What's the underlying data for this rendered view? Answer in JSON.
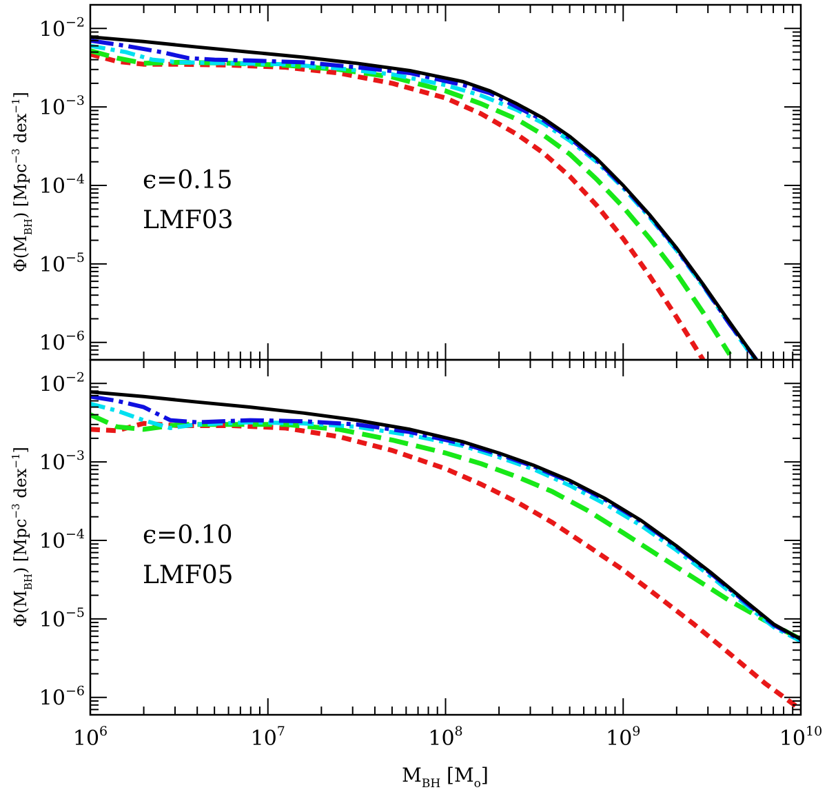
{
  "chart_data": [
    {
      "type": "line",
      "panel": "top",
      "annotation": {
        "line1": "ϵ=0.15",
        "line2": "LMF03"
      },
      "ylabel": {
        "base": "Φ(M",
        "sub": "BH",
        "mid": ")  [Mpc",
        "sup": "−3",
        "end": " dex",
        "sup2": "−1",
        "close": "]"
      },
      "xscale": "log",
      "yscale": "log",
      "xlim": [
        1000000,
        10000000000
      ],
      "ylim": [
        6e-07,
        0.02
      ],
      "yticks": [
        {
          "value": 0.01,
          "base": "10",
          "exp": "−2"
        },
        {
          "value": 0.001,
          "base": "10",
          "exp": "−3"
        },
        {
          "value": 0.0001,
          "base": "10",
          "exp": "−4"
        },
        {
          "value": 1e-05,
          "base": "10",
          "exp": "−5"
        },
        {
          "value": 1e-06,
          "base": "10",
          "exp": "−6"
        }
      ],
      "series": [
        {
          "name": "black solid",
          "color": "#000000",
          "dash": "",
          "width": 5,
          "points": [
            [
              6.0,
              0.0078
            ],
            [
              6.3,
              0.0068
            ],
            [
              6.6,
              0.0058
            ],
            [
              6.9,
              0.005
            ],
            [
              7.2,
              0.0043
            ],
            [
              7.5,
              0.0036
            ],
            [
              7.8,
              0.0029
            ],
            [
              8.1,
              0.0021
            ],
            [
              8.25,
              0.0016
            ],
            [
              8.4,
              0.0011
            ],
            [
              8.55,
              0.00072
            ],
            [
              8.7,
              0.00042
            ],
            [
              8.85,
              0.00022
            ],
            [
              9.0,
              0.0001
            ],
            [
              9.15,
              4.2e-05
            ],
            [
              9.3,
              1.6e-05
            ],
            [
              9.45,
              5.5e-06
            ],
            [
              9.6,
              1.8e-06
            ],
            [
              9.75,
              6e-07
            ]
          ]
        },
        {
          "name": "blue long-dash-dot",
          "color": "#1010e0",
          "dash": "34 8 6 8",
          "width": 6,
          "points": [
            [
              6.0,
              0.007
            ],
            [
              6.2,
              0.006
            ],
            [
              6.4,
              0.005
            ],
            [
              6.55,
              0.0042
            ],
            [
              6.7,
              0.004
            ],
            [
              6.9,
              0.0039
            ],
            [
              7.2,
              0.0037
            ],
            [
              7.5,
              0.0032
            ],
            [
              7.8,
              0.0027
            ],
            [
              8.1,
              0.0019
            ],
            [
              8.25,
              0.0015
            ],
            [
              8.4,
              0.001
            ],
            [
              8.55,
              0.00068
            ],
            [
              8.7,
              0.0004
            ],
            [
              8.85,
              0.00021
            ],
            [
              9.0,
              9.75e-05
            ],
            [
              9.15,
              4.1e-05
            ],
            [
              9.3,
              1.56e-05
            ],
            [
              9.45,
              5.4e-06
            ],
            [
              9.6,
              1.7e-06
            ],
            [
              9.75,
              6e-07
            ]
          ]
        },
        {
          "name": "cyan dash-dot",
          "color": "#00e0f0",
          "dash": "22 8 6 8",
          "width": 6,
          "points": [
            [
              6.0,
              0.006
            ],
            [
              6.2,
              0.005
            ],
            [
              6.35,
              0.004
            ],
            [
              6.5,
              0.0037
            ],
            [
              6.8,
              0.0036
            ],
            [
              7.1,
              0.0035
            ],
            [
              7.4,
              0.0031
            ],
            [
              7.7,
              0.0026
            ],
            [
              8.0,
              0.0019
            ],
            [
              8.2,
              0.0014
            ],
            [
              8.4,
              0.00092
            ],
            [
              8.55,
              0.00062
            ],
            [
              8.7,
              0.00037
            ],
            [
              8.85,
              0.0002
            ],
            [
              9.0,
              9.3e-05
            ],
            [
              9.15,
              3.9e-05
            ],
            [
              9.3,
              1.5e-05
            ],
            [
              9.45,
              5.2e-06
            ],
            [
              9.6,
              1.7e-06
            ],
            [
              9.74,
              6e-07
            ]
          ]
        },
        {
          "name": "green long-dash",
          "color": "#18e818",
          "dash": "28 12",
          "width": 7,
          "points": [
            [
              6.0,
              0.0052
            ],
            [
              6.15,
              0.0042
            ],
            [
              6.3,
              0.0036
            ],
            [
              6.5,
              0.0037
            ],
            [
              6.8,
              0.0036
            ],
            [
              7.1,
              0.0034
            ],
            [
              7.4,
              0.003
            ],
            [
              7.7,
              0.0024
            ],
            [
              8.0,
              0.0016
            ],
            [
              8.2,
              0.0011
            ],
            [
              8.4,
              0.0007
            ],
            [
              8.55,
              0.00044
            ],
            [
              8.7,
              0.00025
            ],
            [
              8.85,
              0.00012
            ],
            [
              9.0,
              5.3e-05
            ],
            [
              9.15,
              2.1e-05
            ],
            [
              9.3,
              7.6e-06
            ],
            [
              9.45,
              2.4e-06
            ],
            [
              9.6,
              7e-07
            ]
          ]
        },
        {
          "name": "red short-dash",
          "color": "#e81818",
          "dash": "14 9",
          "width": 7,
          "points": [
            [
              6.0,
              0.0047
            ],
            [
              6.15,
              0.0038
            ],
            [
              6.3,
              0.0035
            ],
            [
              6.5,
              0.0035
            ],
            [
              6.8,
              0.0034
            ],
            [
              7.1,
              0.0032
            ],
            [
              7.4,
              0.0027
            ],
            [
              7.7,
              0.002
            ],
            [
              8.0,
              0.0013
            ],
            [
              8.2,
              0.00082
            ],
            [
              8.4,
              0.00045
            ],
            [
              8.55,
              0.00026
            ],
            [
              8.7,
              0.00013
            ],
            [
              8.85,
              5.6e-05
            ],
            [
              9.0,
              2.1e-05
            ],
            [
              9.15,
              7e-06
            ],
            [
              9.3,
              2.1e-06
            ],
            [
              9.45,
              6e-07
            ]
          ]
        }
      ]
    },
    {
      "type": "line",
      "panel": "bottom",
      "annotation": {
        "line1": "ϵ=0.10",
        "line2": "LMF05"
      },
      "ylabel": {
        "base": "Φ(M",
        "sub": "BH",
        "mid": ")  [Mpc",
        "sup": "−3",
        "end": " dex",
        "sup2": "−1",
        "close": "]"
      },
      "xlabel": {
        "base": "M",
        "sub": "BH",
        "mid": "  [M",
        "sub2": "o",
        "close": "]"
      },
      "xscale": "log",
      "yscale": "log",
      "xlim": [
        1000000,
        10000000000
      ],
      "ylim": [
        6e-07,
        0.02
      ],
      "xticks": [
        {
          "value": 1000000,
          "base": "10",
          "exp": "6"
        },
        {
          "value": 10000000,
          "base": "10",
          "exp": "7"
        },
        {
          "value": 100000000,
          "base": "10",
          "exp": "8"
        },
        {
          "value": 1000000000,
          "base": "10",
          "exp": "9"
        },
        {
          "value": 10000000000,
          "base": "10",
          "exp": "10"
        }
      ],
      "yticks": [
        {
          "value": 0.01,
          "base": "10",
          "exp": "−2"
        },
        {
          "value": 0.001,
          "base": "10",
          "exp": "−3"
        },
        {
          "value": 0.0001,
          "base": "10",
          "exp": "−4"
        },
        {
          "value": 1e-05,
          "base": "10",
          "exp": "−5"
        },
        {
          "value": 1e-06,
          "base": "10",
          "exp": "−6"
        }
      ],
      "series": [
        {
          "name": "black solid",
          "color": "#000000",
          "dash": "",
          "width": 5,
          "points": [
            [
              6.0,
              0.0078
            ],
            [
              6.3,
              0.0068
            ],
            [
              6.6,
              0.0058
            ],
            [
              6.9,
              0.005
            ],
            [
              7.2,
              0.0042
            ],
            [
              7.5,
              0.0034
            ],
            [
              7.8,
              0.0026
            ],
            [
              8.1,
              0.0018
            ],
            [
              8.3,
              0.0013
            ],
            [
              8.5,
              0.0009
            ],
            [
              8.7,
              0.00058
            ],
            [
              8.9,
              0.00034
            ],
            [
              9.1,
              0.00018
            ],
            [
              9.3,
              8.5e-05
            ],
            [
              9.5,
              3.8e-05
            ],
            [
              9.7,
              1.6e-05
            ],
            [
              9.85,
              8.5e-06
            ],
            [
              10.0,
              5.5e-06
            ]
          ]
        },
        {
          "name": "blue long-dash-dot",
          "color": "#1010e0",
          "dash": "34 8 6 8",
          "width": 6,
          "points": [
            [
              6.0,
              0.0068
            ],
            [
              6.15,
              0.006
            ],
            [
              6.3,
              0.005
            ],
            [
              6.45,
              0.0034
            ],
            [
              6.6,
              0.0032
            ],
            [
              6.9,
              0.0034
            ],
            [
              7.2,
              0.0033
            ],
            [
              7.5,
              0.003
            ],
            [
              7.8,
              0.0024
            ],
            [
              8.1,
              0.0017
            ],
            [
              8.3,
              0.00125
            ],
            [
              8.5,
              0.00087
            ],
            [
              8.7,
              0.00056
            ],
            [
              8.9,
              0.00033
            ],
            [
              9.1,
              0.000175
            ],
            [
              9.3,
              8.3e-05
            ],
            [
              9.5,
              3.7e-05
            ],
            [
              9.7,
              1.55e-05
            ],
            [
              9.85,
              8.3e-06
            ],
            [
              10.0,
              5.4e-06
            ]
          ]
        },
        {
          "name": "cyan dash-dot",
          "color": "#00e0f0",
          "dash": "22 8 6 8",
          "width": 6,
          "points": [
            [
              6.0,
              0.0055
            ],
            [
              6.15,
              0.0045
            ],
            [
              6.3,
              0.0034
            ],
            [
              6.45,
              0.0027
            ],
            [
              6.6,
              0.003
            ],
            [
              6.9,
              0.0032
            ],
            [
              7.2,
              0.0031
            ],
            [
              7.5,
              0.0028
            ],
            [
              7.8,
              0.0022
            ],
            [
              8.1,
              0.0016
            ],
            [
              8.3,
              0.00115
            ],
            [
              8.5,
              0.0008
            ],
            [
              8.7,
              0.0005
            ],
            [
              8.9,
              0.00029
            ],
            [
              9.1,
              0.000155
            ],
            [
              9.3,
              7.5e-05
            ],
            [
              9.5,
              3.4e-05
            ],
            [
              9.7,
              1.45e-05
            ],
            [
              9.85,
              7.8e-06
            ],
            [
              10.0,
              5.2e-06
            ]
          ]
        },
        {
          "name": "green long-dash",
          "color": "#18e818",
          "dash": "28 12",
          "width": 7,
          "points": [
            [
              6.0,
              0.004
            ],
            [
              6.15,
              0.0028
            ],
            [
              6.3,
              0.0026
            ],
            [
              6.5,
              0.003
            ],
            [
              6.8,
              0.003
            ],
            [
              7.1,
              0.003
            ],
            [
              7.4,
              0.0026
            ],
            [
              7.7,
              0.0019
            ],
            [
              8.0,
              0.0013
            ],
            [
              8.2,
              0.00095
            ],
            [
              8.4,
              0.00065
            ],
            [
              8.6,
              0.00042
            ],
            [
              8.8,
              0.00024
            ],
            [
              9.0,
              0.000125
            ],
            [
              9.2,
              6.4e-05
            ],
            [
              9.4,
              3.3e-05
            ],
            [
              9.6,
              1.7e-05
            ],
            [
              9.8,
              9.5e-06
            ],
            [
              10.0,
              5.5e-06
            ]
          ]
        },
        {
          "name": "red short-dash",
          "color": "#e81818",
          "dash": "14 9",
          "width": 7,
          "points": [
            [
              6.0,
              0.0026
            ],
            [
              6.15,
              0.0025
            ],
            [
              6.3,
              0.0031
            ],
            [
              6.5,
              0.0029
            ],
            [
              6.8,
              0.0029
            ],
            [
              7.1,
              0.0027
            ],
            [
              7.4,
              0.0021
            ],
            [
              7.7,
              0.0014
            ],
            [
              8.0,
              0.00082
            ],
            [
              8.2,
              0.00052
            ],
            [
              8.4,
              0.00031
            ],
            [
              8.6,
              0.00017
            ],
            [
              8.8,
              8.5e-05
            ],
            [
              9.0,
              4.2e-05
            ],
            [
              9.2,
              1.9e-05
            ],
            [
              9.4,
              8.5e-06
            ],
            [
              9.6,
              3.6e-06
            ],
            [
              9.8,
              1.5e-06
            ],
            [
              10.0,
              7e-07
            ]
          ]
        }
      ]
    }
  ]
}
